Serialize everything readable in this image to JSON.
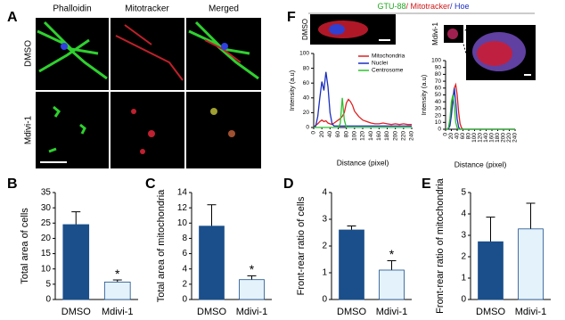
{
  "figure": {
    "panel_labels": [
      "A",
      "B",
      "C",
      "D",
      "E",
      "F"
    ],
    "panel_a": {
      "columns": [
        "Phalloidin",
        "Mitotracker",
        "Merged"
      ],
      "rows": [
        "DMSO",
        "Mdivi-1"
      ]
    },
    "panel_f": {
      "header": [
        "GTU-88",
        "/ Mitotracker",
        "/ Hoe"
      ],
      "image_labels": [
        "DMSO",
        "Mdivi-1"
      ]
    }
  },
  "chart_data": [
    {
      "type": "bar",
      "y_label": "Total area of cells",
      "categories": [
        "DMSO",
        "Mdivi-1"
      ],
      "values": [
        24.5,
        5.7
      ],
      "errors": [
        4.2,
        0.7
      ],
      "colors": [
        "#1a4f8b",
        "#e4f2fb"
      ],
      "ylim": [
        0,
        35
      ],
      "yticks": [
        0,
        5,
        10,
        15,
        20,
        25,
        30,
        35
      ],
      "annotation": "*"
    },
    {
      "type": "bar",
      "y_label": "Total area of mitochondria",
      "categories": [
        "DMSO",
        "Mdivi-1"
      ],
      "values": [
        9.6,
        2.6
      ],
      "errors": [
        2.8,
        0.5
      ],
      "colors": [
        "#1a4f8b",
        "#e4f2fb"
      ],
      "ylim": [
        0,
        14
      ],
      "yticks": [
        0,
        2,
        4,
        6,
        8,
        10,
        12,
        14
      ],
      "annotation": "*"
    },
    {
      "type": "bar",
      "y_label": "Front-rear ratio of cells",
      "categories": [
        "DMSO",
        "Mdivi-1"
      ],
      "values": [
        2.6,
        1.1
      ],
      "errors": [
        0.15,
        0.35
      ],
      "colors": [
        "#1a4f8b",
        "#e4f2fb"
      ],
      "ylim": [
        0,
        4
      ],
      "yticks": [
        0,
        1,
        2,
        3,
        4
      ],
      "annotation": "*"
    },
    {
      "type": "bar",
      "y_label": "Front-rear ratio of mitochondria",
      "categories": [
        "DMSO",
        "Mdivi-1"
      ],
      "values": [
        2.7,
        3.3
      ],
      "errors": [
        1.15,
        1.2
      ],
      "colors": [
        "#1a4f8b",
        "#e4f2fb"
      ],
      "ylim": [
        0,
        5
      ],
      "yticks": [
        0,
        1,
        2,
        3,
        4,
        5
      ]
    },
    {
      "type": "line",
      "x_label": "Distance (pixel)",
      "y_label": "Intensity (a.u)",
      "legend": "upper right",
      "x": [
        0,
        5,
        10,
        15,
        20,
        25,
        30,
        35,
        40,
        45,
        50,
        55,
        60,
        65,
        70,
        75,
        80,
        85,
        90,
        95,
        100,
        110,
        120,
        130,
        140,
        150,
        160,
        170,
        180,
        190,
        200,
        210,
        220,
        230,
        240
      ],
      "series": [
        {
          "name": "Mitochondria",
          "color": "#e02020",
          "values": [
            0,
            3,
            5,
            8,
            10,
            8,
            9,
            6,
            5,
            4,
            6,
            8,
            10,
            12,
            15,
            20,
            33,
            38,
            35,
            30,
            22,
            15,
            10,
            8,
            6,
            5,
            5,
            6,
            5,
            4,
            5,
            4,
            5,
            4,
            4
          ]
        },
        {
          "name": "Nuclei",
          "color": "#1a2fc0",
          "values": [
            0,
            2,
            15,
            40,
            62,
            50,
            75,
            55,
            20,
            5,
            2,
            2,
            2,
            2,
            2,
            2,
            2,
            2,
            2,
            2,
            2,
            2,
            2,
            2,
            2,
            2,
            2,
            2,
            2,
            2,
            2,
            2,
            2,
            2,
            2
          ]
        },
        {
          "name": "Centrosome",
          "color": "#2ec02e",
          "values": [
            0,
            0,
            0,
            0,
            0,
            0,
            0,
            0,
            0,
            0,
            0,
            0,
            0,
            5,
            40,
            10,
            0,
            0,
            0,
            0,
            0,
            0,
            0,
            0,
            0,
            0,
            0,
            0,
            0,
            0,
            0,
            0,
            0,
            0,
            0
          ]
        }
      ],
      "xlim": [
        0,
        240
      ],
      "xticks": [
        0,
        20,
        40,
        60,
        80,
        100,
        120,
        140,
        160,
        180,
        200,
        220,
        240
      ],
      "ylim": [
        0,
        100
      ],
      "yticks": [
        0,
        20,
        40,
        60,
        80,
        100
      ]
    },
    {
      "type": "line",
      "x_label": "Distance (pixel)",
      "y_label": "Intensity (a.u)",
      "x": [
        0,
        5,
        10,
        15,
        20,
        25,
        30,
        35,
        40,
        45,
        50,
        55,
        60,
        80,
        100,
        120,
        140,
        160,
        180,
        200,
        220,
        240
      ],
      "series": [
        {
          "color": "#e02020",
          "values": [
            0,
            0,
            2,
            10,
            30,
            45,
            60,
            65,
            50,
            25,
            8,
            2,
            0,
            0,
            0,
            0,
            0,
            0,
            0,
            0,
            0,
            0
          ]
        },
        {
          "color": "#1a2fc0",
          "values": [
            0,
            0,
            1,
            5,
            20,
            40,
            60,
            40,
            15,
            3,
            0,
            0,
            0,
            0,
            0,
            0,
            0,
            0,
            0,
            0,
            0,
            0
          ]
        },
        {
          "color": "#2ec02e",
          "values": [
            0,
            0,
            2,
            15,
            40,
            50,
            35,
            10,
            2,
            0,
            0,
            0,
            0,
            0,
            0,
            0,
            0,
            0,
            0,
            0,
            0,
            0
          ]
        }
      ],
      "xlim": [
        0,
        240
      ],
      "xticks": [
        0,
        20,
        40,
        60,
        80,
        100,
        120,
        140,
        160,
        180,
        200,
        220,
        240
      ],
      "ylim": [
        0,
        100
      ],
      "yticks": [
        0,
        10,
        20,
        30,
        40,
        50,
        60,
        70,
        80,
        90,
        100
      ]
    }
  ]
}
